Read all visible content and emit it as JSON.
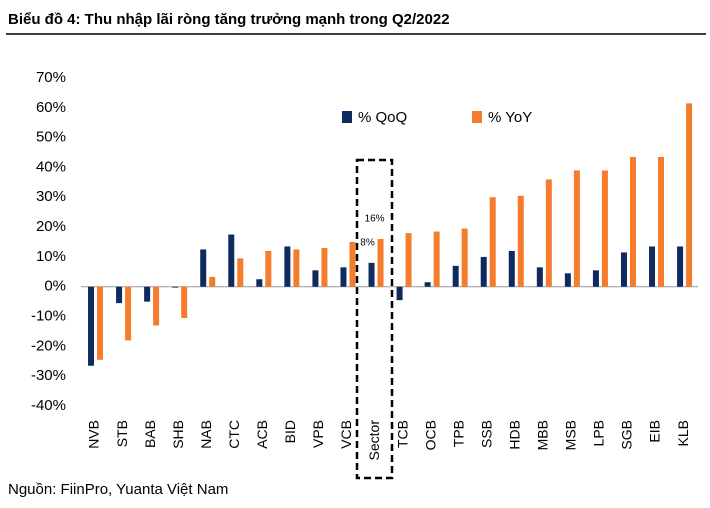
{
  "chart_data": {
    "type": "bar",
    "title": "Biểu đồ 4:  Thu nhập lãi ròng tăng trưởng mạnh trong Q2/2022",
    "source": "Nguồn: FiinPro, Yuanta Việt Nam",
    "categories": [
      "NVB",
      "STB",
      "BAB",
      "SHB",
      "NAB",
      "CTC",
      "ACB",
      "BID",
      "VPB",
      "VCB",
      "Sector",
      "TCB",
      "OCB",
      "TPB",
      "SSB",
      "HDB",
      "MBB",
      "MSB",
      "LPB",
      "SGB",
      "EIB",
      "KLB"
    ],
    "series": [
      {
        "name": "% QoQ",
        "color": "#0e2a5e",
        "values": [
          -26.5,
          -5.5,
          -5,
          -0.3,
          12.5,
          17.5,
          2.5,
          13.5,
          5.5,
          6.5,
          8,
          -4.5,
          1.5,
          7,
          10,
          12,
          6.5,
          4.5,
          5.5,
          11.5,
          13.5,
          13.5
        ],
        "value_labels": [
          null,
          null,
          null,
          null,
          null,
          null,
          null,
          null,
          null,
          null,
          "8%",
          null,
          null,
          null,
          null,
          null,
          null,
          null,
          null,
          null,
          null,
          null
        ]
      },
      {
        "name": "% YoY",
        "color": "#f57c2a",
        "values": [
          -24.5,
          -18,
          -13,
          -10.5,
          3.3,
          9.5,
          12,
          12.5,
          13,
          15,
          16,
          18,
          18.5,
          19.5,
          30,
          30.5,
          36,
          39,
          39,
          43.5,
          43.5,
          61.5
        ],
        "value_labels": [
          null,
          null,
          null,
          null,
          null,
          null,
          null,
          null,
          null,
          null,
          "16%",
          null,
          null,
          null,
          null,
          null,
          null,
          null,
          null,
          null,
          null,
          null
        ]
      }
    ],
    "ylim": [
      -40,
      70
    ],
    "yticks": [
      {
        "value": -40,
        "label": "-40%"
      },
      {
        "value": -30,
        "label": "-30%"
      },
      {
        "value": -20,
        "label": "-20%"
      },
      {
        "value": -10,
        "label": "-10%"
      },
      {
        "value": 0,
        "label": "0%"
      },
      {
        "value": 10,
        "label": "10%"
      },
      {
        "value": 20,
        "label": "20%"
      },
      {
        "value": 30,
        "label": "30%"
      },
      {
        "value": 40,
        "label": "40%"
      },
      {
        "value": 50,
        "label": "50%"
      },
      {
        "value": 60,
        "label": "60%"
      },
      {
        "value": 70,
        "label": "70%"
      }
    ],
    "grid": false
  }
}
